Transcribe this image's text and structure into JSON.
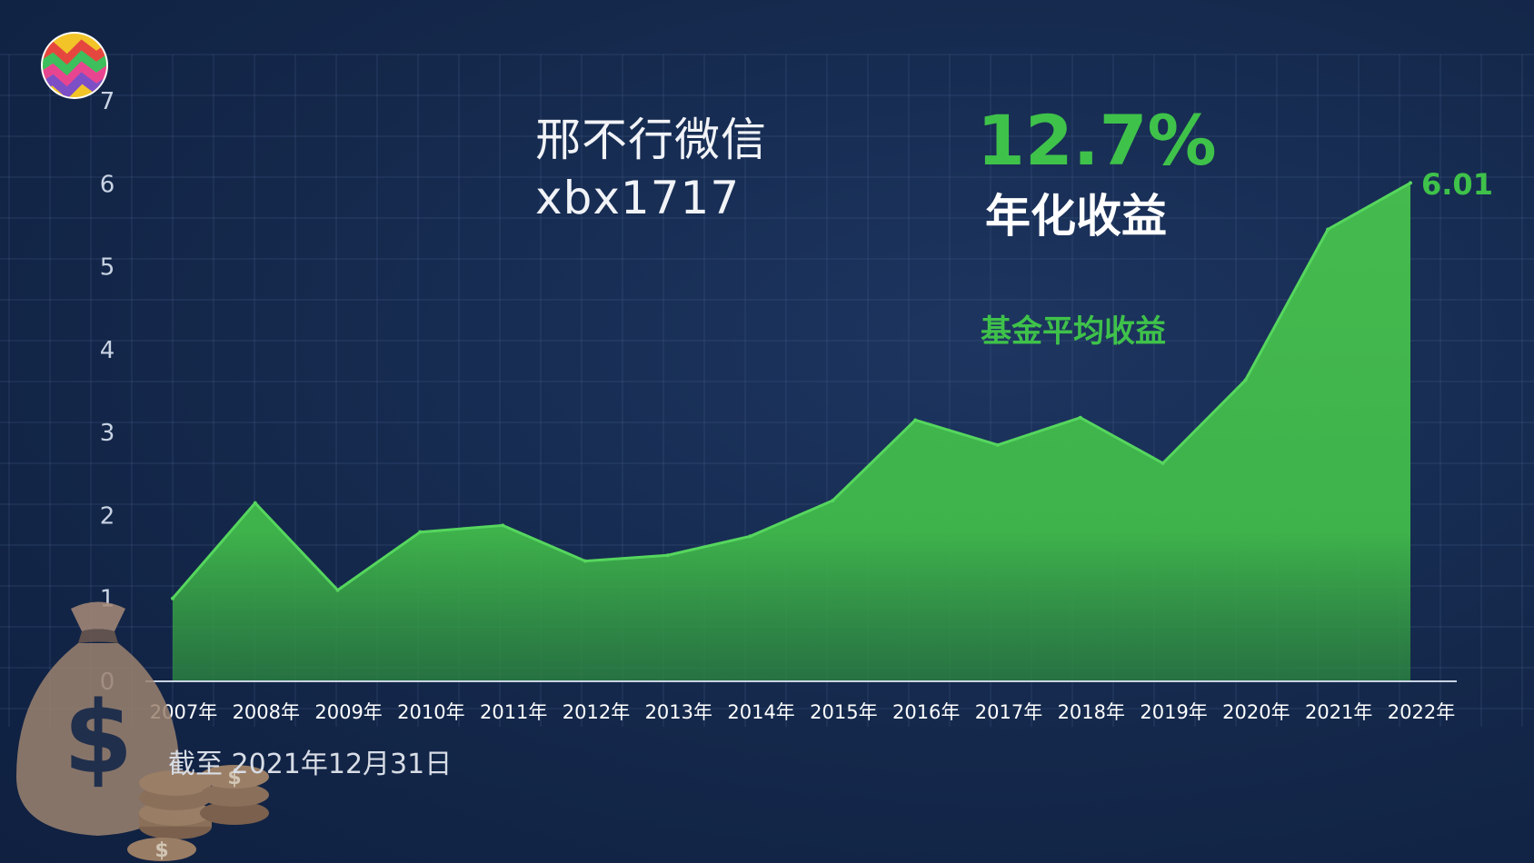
{
  "watermark": {
    "line1": "邢不行微信",
    "line2": "xbx1717"
  },
  "highlight": {
    "rate": "12.7%",
    "rate_label": "年化收益"
  },
  "series_label": "基金平均收益",
  "end_value_label": "6.01",
  "date_note": "截至 2021年12月31日",
  "colors": {
    "background": "#14284b",
    "area": "#3fb54b",
    "line": "#56d65e",
    "accent_text": "#3fc24a"
  },
  "icons": {
    "logo": "rainbow-zigzag-logo-icon",
    "decoration": "money-bag-coins-icon"
  },
  "chart_data": {
    "type": "area",
    "categories": [
      "2007年",
      "2008年",
      "2009年",
      "2010年",
      "2011年",
      "2012年",
      "2013年",
      "2014年",
      "2015年",
      "2016年",
      "2017年",
      "2018年",
      "2019年",
      "2020年",
      "2021年",
      "2022年"
    ],
    "series": [
      {
        "name": "基金平均收益",
        "values": [
          1.0,
          2.15,
          1.1,
          1.8,
          1.88,
          1.45,
          1.52,
          1.75,
          2.18,
          3.15,
          2.85,
          3.18,
          2.63,
          3.63,
          5.45,
          6.01
        ]
      }
    ],
    "yticks": [
      "0",
      "1",
      "2",
      "3",
      "4",
      "5",
      "6",
      "7"
    ],
    "ylim": [
      0,
      7
    ],
    "grid": true
  }
}
